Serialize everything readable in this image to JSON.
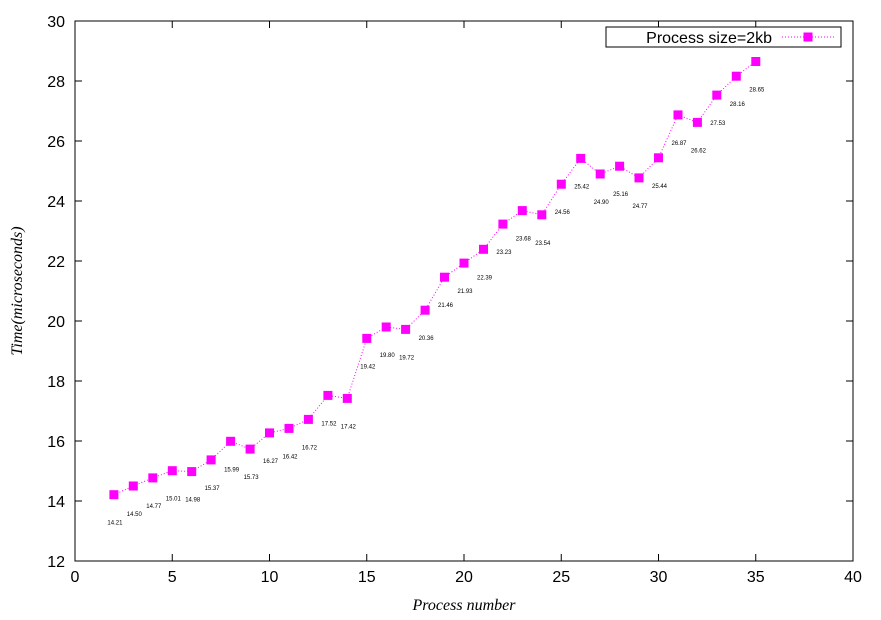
{
  "chart_data": {
    "type": "line",
    "title": "",
    "xlabel": "Process number",
    "ylabel": "Time(microseconds)",
    "xlim": [
      0,
      40
    ],
    "ylim": [
      12,
      30
    ],
    "xticks": [
      0,
      5,
      10,
      15,
      20,
      25,
      30,
      35,
      40
    ],
    "yticks": [
      12,
      14,
      16,
      18,
      20,
      22,
      24,
      26,
      28,
      30
    ],
    "legend_position": "top-right",
    "grid": false,
    "series": [
      {
        "name": "Process size=2kb",
        "color": "#ff00ff",
        "marker": "square",
        "line_style": "dotted",
        "x": [
          2,
          3,
          4,
          5,
          6,
          7,
          8,
          9,
          10,
          11,
          12,
          13,
          14,
          15,
          16,
          17,
          18,
          19,
          20,
          21,
          22,
          23,
          24,
          25,
          26,
          27,
          28,
          29,
          30,
          31,
          32,
          33,
          34,
          35
        ],
        "y": [
          14.21,
          14.5,
          14.77,
          15.01,
          14.98,
          15.37,
          15.99,
          15.73,
          16.27,
          16.42,
          16.72,
          17.52,
          17.42,
          19.42,
          19.8,
          19.72,
          20.36,
          21.46,
          21.93,
          22.39,
          23.23,
          23.68,
          23.54,
          24.56,
          25.42,
          24.9,
          25.16,
          24.77,
          25.44,
          26.87,
          26.62,
          27.53,
          28.16,
          28.65
        ],
        "labels": [
          "14.21",
          "14.50",
          "14.77",
          "15.01",
          "14.98",
          "15.37",
          "15.99",
          "15.73",
          "16.27",
          "16.42",
          "16.72",
          "17.52",
          "17.42",
          "19.42",
          "19.80",
          "19.72",
          "20.36",
          "21.46",
          "21.93",
          "22.39",
          "23.23",
          "23.68",
          "23.54",
          "24.56",
          "25.42",
          "24.90",
          "25.16",
          "24.77",
          "25.44",
          "26.87",
          "26.62",
          "27.53",
          "28.16",
          "28.65"
        ]
      }
    ]
  }
}
